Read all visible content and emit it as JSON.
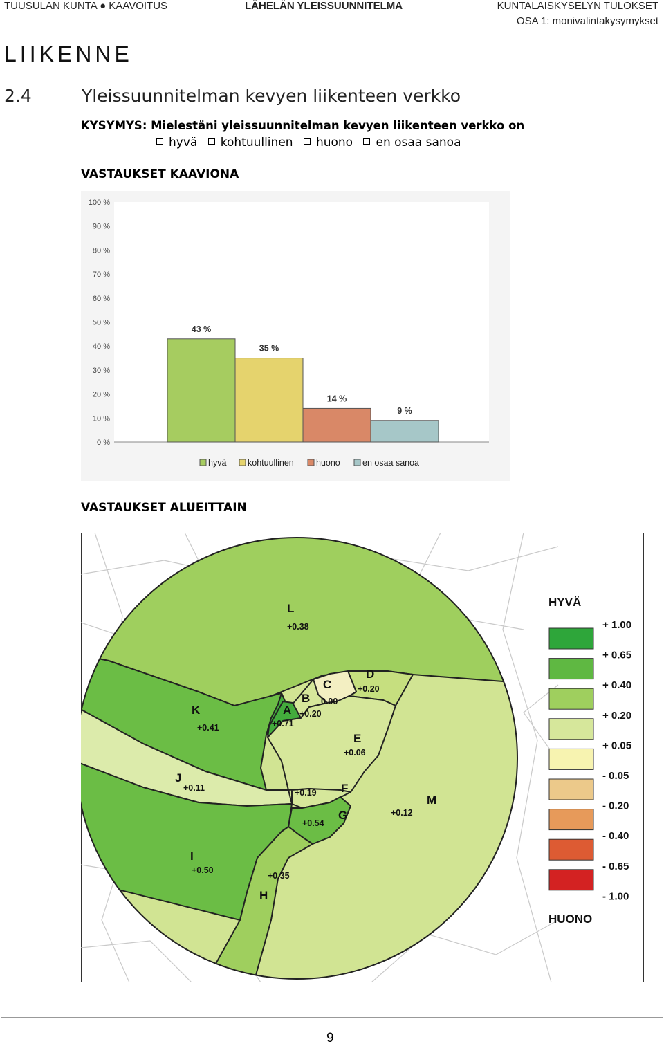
{
  "header": {
    "left": "TUUSULAN KUNTA ● KAAVOITUS",
    "center": "LÄHELÄN YLEISSUUNNITELMA",
    "right": "KUNTALAISKYSELYN TULOKSET",
    "subtitle": "OSA 1: monivalintakysymykset"
  },
  "section_title": "LIIKENNE",
  "heading": {
    "number": "2.4",
    "text": "Yleissuunnitelman kevyen liikenteen verkko"
  },
  "question": "KYSYMYS: Mielestäni yleissuunnitelman kevyen liikenteen verkko on",
  "options": [
    "hyvä",
    "kohtuullinen",
    "huono",
    "en osaa sanoa"
  ],
  "chart_section_title": "VASTAUKSET KAAVIONA",
  "chart_data": {
    "type": "bar",
    "categories": [
      "hyvä",
      "kohtuullinen",
      "huono",
      "en osaa sanoa"
    ],
    "values": [
      43,
      35,
      14,
      9
    ],
    "data_labels": [
      "43 %",
      "35 %",
      "14 %",
      "9 %"
    ],
    "colors": [
      "#a6cc60",
      "#e5d36d",
      "#d98867",
      "#a6c7c8"
    ],
    "y_ticks": [
      "0 %",
      "10 %",
      "20 %",
      "30 %",
      "40 %",
      "50 %",
      "60 %",
      "70 %",
      "80 %",
      "90 %",
      "100 %"
    ],
    "ylim": [
      0,
      100
    ],
    "legend_position": "bottom",
    "grid": false
  },
  "map_section_title": "VASTAUKSET ALUEITTAIN",
  "map": {
    "legend_top": "HYVÄ",
    "legend_bottom": "HUONO",
    "legend_colors": [
      "#2ea63a",
      "#5fb842",
      "#9fcf5e",
      "#d6e79b",
      "#f7f3b0",
      "#ecc98a",
      "#e79a5a",
      "#dd5b33",
      "#d32222"
    ],
    "legend_values": [
      "+ 1.00",
      "+ 0.65",
      "+ 0.40",
      "+ 0.20",
      "+ 0.05",
      "- 0.05",
      "- 0.20",
      "- 0.40",
      "- 0.65",
      "- 1.00"
    ],
    "regions": [
      {
        "id": "L",
        "value": "+0.38",
        "color": "#9fcf5e"
      },
      {
        "id": "K",
        "value": "+0.41",
        "color": "#6bbd45"
      },
      {
        "id": "A",
        "value": "+0.71",
        "color": "#43ab3c"
      },
      {
        "id": "B",
        "value": "+0.20",
        "color": "#d6e79b"
      },
      {
        "id": "C",
        "value": "0.00",
        "color": "#f3efc2"
      },
      {
        "id": "D",
        "value": "+0.20",
        "color": "#c6df7f"
      },
      {
        "id": "E",
        "value": "+0.06",
        "color": "#d6e79b"
      },
      {
        "id": "J",
        "value": "+0.11",
        "color": "#dcebab"
      },
      {
        "id": "F",
        "value": "+0.19",
        "color": "#d6e79b"
      },
      {
        "id": "G",
        "value": "+0.54",
        "color": "#6bbd45"
      },
      {
        "id": "M",
        "value": "+0.12",
        "color": "#d1e493"
      },
      {
        "id": "I",
        "value": "+0.50",
        "color": "#6bbd45"
      },
      {
        "id": "H",
        "value": "+0.35",
        "color": "#9fcf5e"
      }
    ]
  },
  "page_number": "9"
}
